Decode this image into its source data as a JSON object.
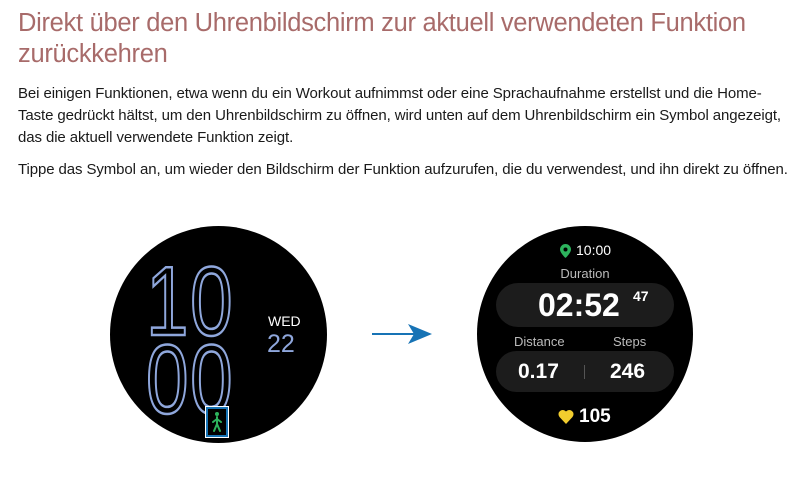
{
  "title": "Direkt über den Uhrenbildschirm zur aktuell verwendeten Funktion zurückkehren",
  "paragraphs": [
    "Bei einigen Funktionen, etwa wenn du ein Workout aufnimmst oder eine Sprachaufnahme erstellst und die Home-Taste gedrückt hältst, um den Uhrenbildschirm zu öffnen, wird unten auf dem Uhrenbildschirm ein Symbol angezeigt, das die aktuell verwendete Funktion zeigt.",
    "Tippe das Symbol an, um wieder den Bildschirm der Funktion aufzurufen, die du verwendest, und ihn direkt zu öffnen."
  ],
  "watch_face": {
    "hour": "10",
    "minute": "00",
    "weekday": "WED",
    "day": "22",
    "icon": "walking-icon"
  },
  "workout_screen": {
    "time": "10:00",
    "time_icon": "location-pin-icon",
    "duration_label": "Duration",
    "duration": "02:52",
    "seconds": "47",
    "distance_label": "Distance",
    "steps_label": "Steps",
    "distance": "0.17",
    "steps": "246",
    "heart_rate": "105",
    "heart_icon": "heart-icon"
  },
  "colors": {
    "title": "#a86b6a",
    "digits": "#8fa7dc",
    "highlight": "#1773b5",
    "walk": "#2db35d",
    "heart": "#f2cd2e"
  }
}
